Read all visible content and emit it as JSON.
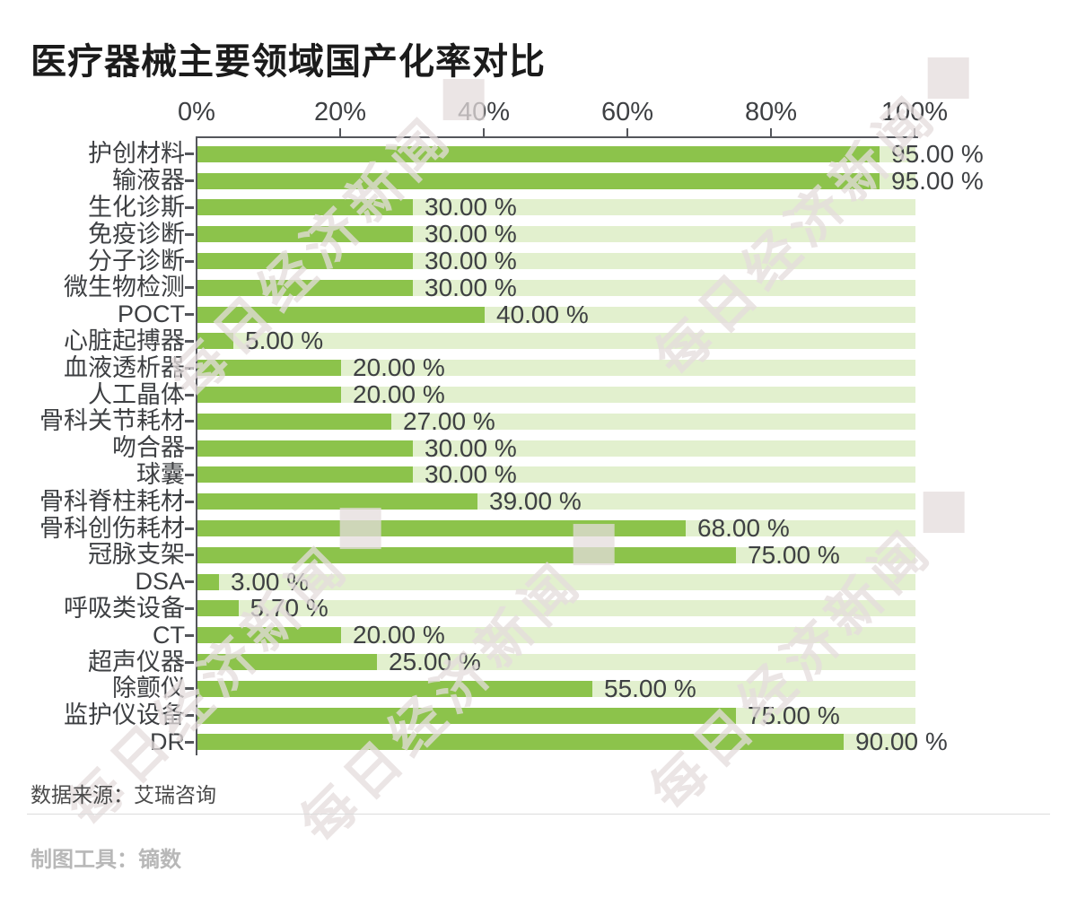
{
  "title": "医疗器械主要领域国产化率对比",
  "chart_data": {
    "type": "bar",
    "orientation": "horizontal",
    "title": "医疗器械主要领域国产化率对比",
    "categories": [
      "护创材料",
      "输液器",
      "生化诊斯",
      "免疫诊断",
      "分子诊断",
      "微生物检测",
      "POCT",
      "心脏起搏器",
      "血液透析器",
      "人工晶体",
      "骨科关节耗材",
      "吻合器",
      "球囊",
      "骨科脊柱耗材",
      "骨科创伤耗材",
      "冠脉支架",
      "DSA",
      "呼吸类设备",
      "CT",
      "超声仪器",
      "除颤仪",
      "监护仪设备",
      "DR"
    ],
    "values": [
      95,
      95,
      30,
      30,
      30,
      30,
      40,
      5,
      20,
      20,
      27,
      30,
      30,
      39,
      68,
      75,
      3,
      5.7,
      20,
      25,
      55,
      75,
      90
    ],
    "value_labels": [
      "95.00 %",
      "95.00 %",
      "30.00 %",
      "30.00 %",
      "30.00 %",
      "30.00 %",
      "40.00 %",
      "5.00 %",
      "20.00 %",
      "20.00 %",
      "27.00 %",
      "30.00 %",
      "30.00 %",
      "39.00 %",
      "68.00 %",
      "75.00 %",
      "3.00 %",
      "5.70 %",
      "20.00 %",
      "25.00 %",
      "55.00 %",
      "75.00 %",
      "90.00 %"
    ],
    "x_ticks": [
      "0%",
      "20%",
      "40%",
      "60%",
      "80%",
      "100%"
    ],
    "xlim": [
      0,
      100
    ],
    "grid": false,
    "legend": false,
    "bar_color": "#8cc34b",
    "track_color": "#e2f0ce",
    "axis_color": "#54565b"
  },
  "footer": {
    "source": "数据来源：艾瑞咨询",
    "tool": "制图工具：镝数"
  },
  "watermark": {
    "text": "每日经济新闻"
  }
}
